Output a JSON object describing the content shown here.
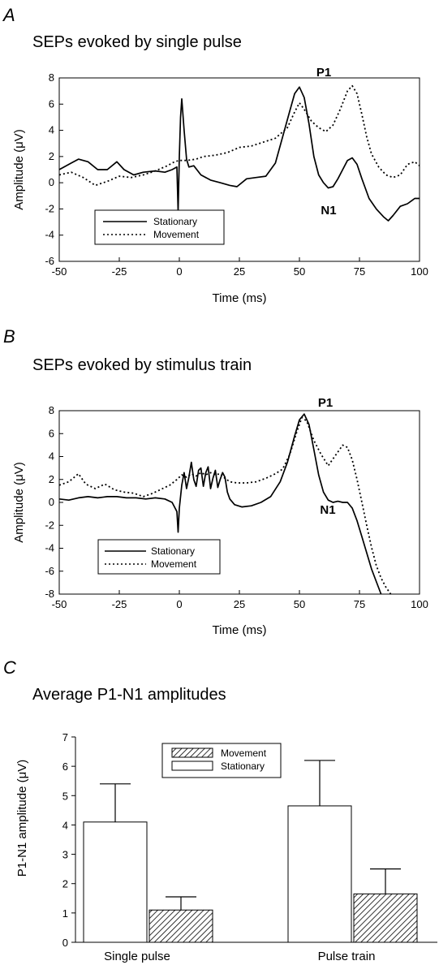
{
  "chart_data": [
    {
      "panel_letter": "A",
      "type": "line",
      "title": "SEPs evoked by single pulse",
      "xlabel": "Time (ms)",
      "ylabel": "Amplitude (μV)",
      "xlim": [
        -50,
        100
      ],
      "ylim": [
        -6,
        8
      ],
      "xticks": [
        -50,
        -25,
        0,
        25,
        50,
        75,
        100
      ],
      "yticks": [
        -6,
        -4,
        -2,
        0,
        2,
        4,
        6,
        8
      ],
      "annotations": [
        {
          "text": "P1",
          "x": 50,
          "y": 7.3
        },
        {
          "text": "N1",
          "x": 67,
          "y": -0.5
        }
      ],
      "legend": {
        "placement": "lower-left"
      },
      "series": [
        {
          "name": "Stationary",
          "style": "solid",
          "points": [
            [
              -50,
              1.0
            ],
            [
              -45,
              1.5
            ],
            [
              -42,
              1.8
            ],
            [
              -38,
              1.6
            ],
            [
              -34,
              1.0
            ],
            [
              -30,
              1.0
            ],
            [
              -26,
              1.6
            ],
            [
              -23,
              1.0
            ],
            [
              -19,
              0.6
            ],
            [
              -15,
              0.8
            ],
            [
              -10,
              0.9
            ],
            [
              -6,
              0.8
            ],
            [
              -3,
              1.0
            ],
            [
              -1,
              1.2
            ],
            [
              -0.5,
              -2.2
            ],
            [
              0,
              2.0
            ],
            [
              0.5,
              5.0
            ],
            [
              1,
              6.4
            ],
            [
              2,
              4.0
            ],
            [
              3,
              1.8
            ],
            [
              4,
              1.2
            ],
            [
              6,
              1.3
            ],
            [
              9,
              0.6
            ],
            [
              13,
              0.2
            ],
            [
              17,
              0.0
            ],
            [
              21,
              -0.2
            ],
            [
              24,
              -0.3
            ],
            [
              28,
              0.3
            ],
            [
              32,
              0.4
            ],
            [
              36,
              0.5
            ],
            [
              40,
              1.5
            ],
            [
              43,
              3.5
            ],
            [
              46,
              5.5
            ],
            [
              48,
              6.8
            ],
            [
              50,
              7.3
            ],
            [
              52,
              6.5
            ],
            [
              54,
              4.5
            ],
            [
              56,
              2.0
            ],
            [
              58,
              0.6
            ],
            [
              60,
              0.0
            ],
            [
              62,
              -0.4
            ],
            [
              64,
              -0.3
            ],
            [
              66,
              0.3
            ],
            [
              68,
              1.0
            ],
            [
              70,
              1.7
            ],
            [
              72,
              1.9
            ],
            [
              74,
              1.4
            ],
            [
              76,
              0.3
            ],
            [
              79,
              -1.2
            ],
            [
              82,
              -2.0
            ],
            [
              85,
              -2.6
            ],
            [
              87,
              -2.9
            ],
            [
              89,
              -2.5
            ],
            [
              92,
              -1.8
            ],
            [
              95,
              -1.6
            ],
            [
              98,
              -1.2
            ],
            [
              100,
              -1.2
            ]
          ]
        },
        {
          "name": "Movement",
          "style": "dotted",
          "points": [
            [
              -50,
              0.6
            ],
            [
              -45,
              0.8
            ],
            [
              -40,
              0.4
            ],
            [
              -35,
              -0.2
            ],
            [
              -30,
              0.1
            ],
            [
              -25,
              0.5
            ],
            [
              -20,
              0.4
            ],
            [
              -15,
              0.6
            ],
            [
              -10,
              0.9
            ],
            [
              -5,
              1.3
            ],
            [
              -2,
              1.6
            ],
            [
              0,
              1.7
            ],
            [
              3,
              1.7
            ],
            [
              7,
              1.8
            ],
            [
              10,
              2.0
            ],
            [
              15,
              2.1
            ],
            [
              20,
              2.3
            ],
            [
              25,
              2.7
            ],
            [
              30,
              2.8
            ],
            [
              35,
              3.1
            ],
            [
              40,
              3.4
            ],
            [
              45,
              4.2
            ],
            [
              48,
              5.4
            ],
            [
              50,
              6.1
            ],
            [
              52,
              5.6
            ],
            [
              55,
              4.7
            ],
            [
              58,
              4.2
            ],
            [
              61,
              3.9
            ],
            [
              64,
              4.4
            ],
            [
              67,
              5.6
            ],
            [
              70,
              7.0
            ],
            [
              72,
              7.4
            ],
            [
              74,
              6.8
            ],
            [
              76,
              5.2
            ],
            [
              78,
              3.5
            ],
            [
              80,
              2.2
            ],
            [
              83,
              1.2
            ],
            [
              86,
              0.6
            ],
            [
              89,
              0.4
            ],
            [
              92,
              0.6
            ],
            [
              95,
              1.4
            ],
            [
              98,
              1.6
            ],
            [
              100,
              1.3
            ]
          ]
        }
      ]
    },
    {
      "panel_letter": "B",
      "type": "line",
      "title": "SEPs evoked by stimulus train",
      "xlabel": "Time (ms)",
      "ylabel": "Amplitude (μV)",
      "xlim": [
        -50,
        100
      ],
      "ylim": [
        -8,
        8
      ],
      "xticks": [
        -50,
        -25,
        0,
        25,
        50,
        75,
        100
      ],
      "yticks": [
        -8,
        -6,
        -4,
        -2,
        0,
        2,
        4,
        6,
        8
      ],
      "annotations": [
        {
          "text": "P1",
          "x": 50,
          "y": 7.7
        },
        {
          "text": "N1",
          "x": 64,
          "y": -1.0
        }
      ],
      "legend": {
        "placement": "lower-left"
      },
      "series": [
        {
          "name": "Stationary",
          "style": "solid",
          "points": [
            [
              -50,
              0.3
            ],
            [
              -46,
              0.2
            ],
            [
              -42,
              0.4
            ],
            [
              -38,
              0.5
            ],
            [
              -34,
              0.4
            ],
            [
              -30,
              0.5
            ],
            [
              -26,
              0.5
            ],
            [
              -22,
              0.4
            ],
            [
              -18,
              0.4
            ],
            [
              -14,
              0.3
            ],
            [
              -10,
              0.4
            ],
            [
              -6,
              0.3
            ],
            [
              -3,
              0.0
            ],
            [
              -1,
              -0.8
            ],
            [
              -0.5,
              -2.6
            ],
            [
              0,
              -0.5
            ],
            [
              1,
              1.5
            ],
            [
              2,
              2.6
            ],
            [
              3,
              1.2
            ],
            [
              4,
              2.2
            ],
            [
              5,
              3.5
            ],
            [
              6,
              2.0
            ],
            [
              7,
              1.4
            ],
            [
              8,
              2.8
            ],
            [
              9,
              3.0
            ],
            [
              10,
              1.4
            ],
            [
              11,
              2.6
            ],
            [
              12,
              3.1
            ],
            [
              13,
              1.2
            ],
            [
              14,
              2.1
            ],
            [
              15,
              2.8
            ],
            [
              16,
              1.3
            ],
            [
              17,
              2.0
            ],
            [
              18,
              2.6
            ],
            [
              19,
              2.2
            ],
            [
              20,
              0.9
            ],
            [
              21,
              0.3
            ],
            [
              23,
              -0.2
            ],
            [
              26,
              -0.4
            ],
            [
              30,
              -0.3
            ],
            [
              34,
              0.0
            ],
            [
              38,
              0.5
            ],
            [
              42,
              1.8
            ],
            [
              45,
              3.5
            ],
            [
              48,
              5.8
            ],
            [
              50,
              7.2
            ],
            [
              52,
              7.7
            ],
            [
              54,
              6.8
            ],
            [
              56,
              4.6
            ],
            [
              58,
              2.4
            ],
            [
              60,
              0.9
            ],
            [
              62,
              0.2
            ],
            [
              64,
              0.0
            ],
            [
              66,
              0.1
            ],
            [
              68,
              0.0
            ],
            [
              70,
              0.0
            ],
            [
              72,
              -0.5
            ],
            [
              74,
              -1.6
            ],
            [
              76,
              -3.0
            ],
            [
              78,
              -4.4
            ],
            [
              80,
              -5.8
            ],
            [
              82,
              -6.9
            ],
            [
              84,
              -8.0
            ]
          ]
        },
        {
          "name": "Movement",
          "style": "dotted",
          "points": [
            [
              -50,
              1.5
            ],
            [
              -46,
              1.8
            ],
            [
              -42,
              2.5
            ],
            [
              -39,
              1.6
            ],
            [
              -35,
              1.2
            ],
            [
              -31,
              1.6
            ],
            [
              -27,
              1.1
            ],
            [
              -23,
              0.9
            ],
            [
              -19,
              0.8
            ],
            [
              -15,
              0.5
            ],
            [
              -11,
              0.8
            ],
            [
              -7,
              1.2
            ],
            [
              -4,
              1.5
            ],
            [
              -1,
              2.0
            ],
            [
              1,
              2.4
            ],
            [
              3,
              2.2
            ],
            [
              5,
              2.5
            ],
            [
              7,
              2.3
            ],
            [
              9,
              2.6
            ],
            [
              11,
              2.4
            ],
            [
              13,
              2.6
            ],
            [
              15,
              2.4
            ],
            [
              17,
              2.5
            ],
            [
              19,
              2.1
            ],
            [
              21,
              1.8
            ],
            [
              24,
              1.7
            ],
            [
              28,
              1.7
            ],
            [
              32,
              1.8
            ],
            [
              36,
              2.1
            ],
            [
              40,
              2.5
            ],
            [
              43,
              2.9
            ],
            [
              46,
              4.2
            ],
            [
              49,
              6.2
            ],
            [
              51,
              7.4
            ],
            [
              53,
              7.1
            ],
            [
              56,
              5.4
            ],
            [
              59,
              4.2
            ],
            [
              62,
              3.2
            ],
            [
              64,
              3.8
            ],
            [
              66,
              4.4
            ],
            [
              68,
              5.0
            ],
            [
              70,
              4.8
            ],
            [
              72,
              3.7
            ],
            [
              74,
              2.0
            ],
            [
              76,
              0.0
            ],
            [
              78,
              -2.0
            ],
            [
              80,
              -3.9
            ],
            [
              82,
              -5.5
            ],
            [
              84,
              -6.6
            ],
            [
              86,
              -7.4
            ],
            [
              88,
              -8.0
            ]
          ]
        }
      ]
    },
    {
      "panel_letter": "C",
      "type": "bar",
      "title": "Average P1-N1 amplitudes",
      "ylabel": "P1-N1 amplitude (μV)",
      "ylim": [
        0,
        7
      ],
      "yticks": [
        0,
        1,
        2,
        3,
        4,
        5,
        6,
        7
      ],
      "categories": [
        "Single pulse",
        "Pulse train"
      ],
      "legend": {
        "placement": "top-center"
      },
      "series": [
        {
          "name": "Stationary",
          "fill": "white",
          "values": [
            4.1,
            4.65
          ],
          "errors": [
            1.3,
            1.55
          ]
        },
        {
          "name": "Movement",
          "fill": "hatched",
          "values": [
            1.1,
            1.65
          ],
          "errors": [
            0.45,
            0.85
          ]
        }
      ]
    }
  ]
}
